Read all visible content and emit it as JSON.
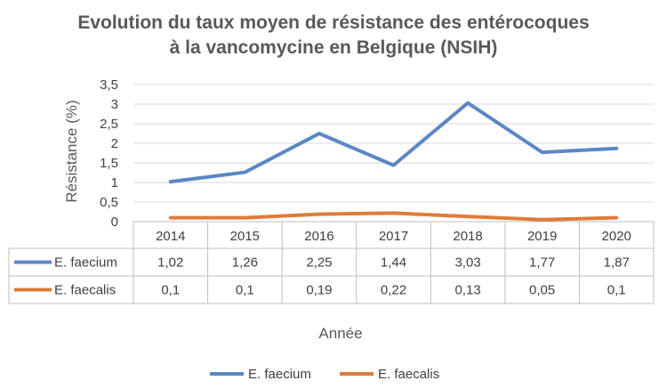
{
  "chart_data": {
    "type": "line",
    "title": "Evolution du taux moyen de résistance des entérocoques",
    "subtitle": "à la vancomycine en Belgique (NSIH)",
    "xlabel": "Année",
    "ylabel": "Résistance (%)",
    "categories": [
      "2014",
      "2015",
      "2016",
      "2017",
      "2018",
      "2019",
      "2020"
    ],
    "yticks": [
      "0",
      "0,5",
      "1",
      "1,5",
      "2",
      "2,5",
      "3",
      "3,5"
    ],
    "ylim": [
      0,
      3.5
    ],
    "grid": true,
    "legend_position": "bottom",
    "series": [
      {
        "name": "E. faecium",
        "color": "#5B87C5",
        "values": [
          1.02,
          1.26,
          2.25,
          1.44,
          3.03,
          1.77,
          1.87
        ],
        "labels": [
          "1,02",
          "1,26",
          "2,25",
          "1,44",
          "3,03",
          "1,77",
          "1,87"
        ]
      },
      {
        "name": "E. faecalis",
        "color": "#E07B39",
        "values": [
          0.1,
          0.1,
          0.19,
          0.22,
          0.13,
          0.05,
          0.1
        ],
        "labels": [
          "0,1",
          "0,1",
          "0,19",
          "0,22",
          "0,13",
          "0,05",
          "0,1"
        ]
      }
    ]
  }
}
